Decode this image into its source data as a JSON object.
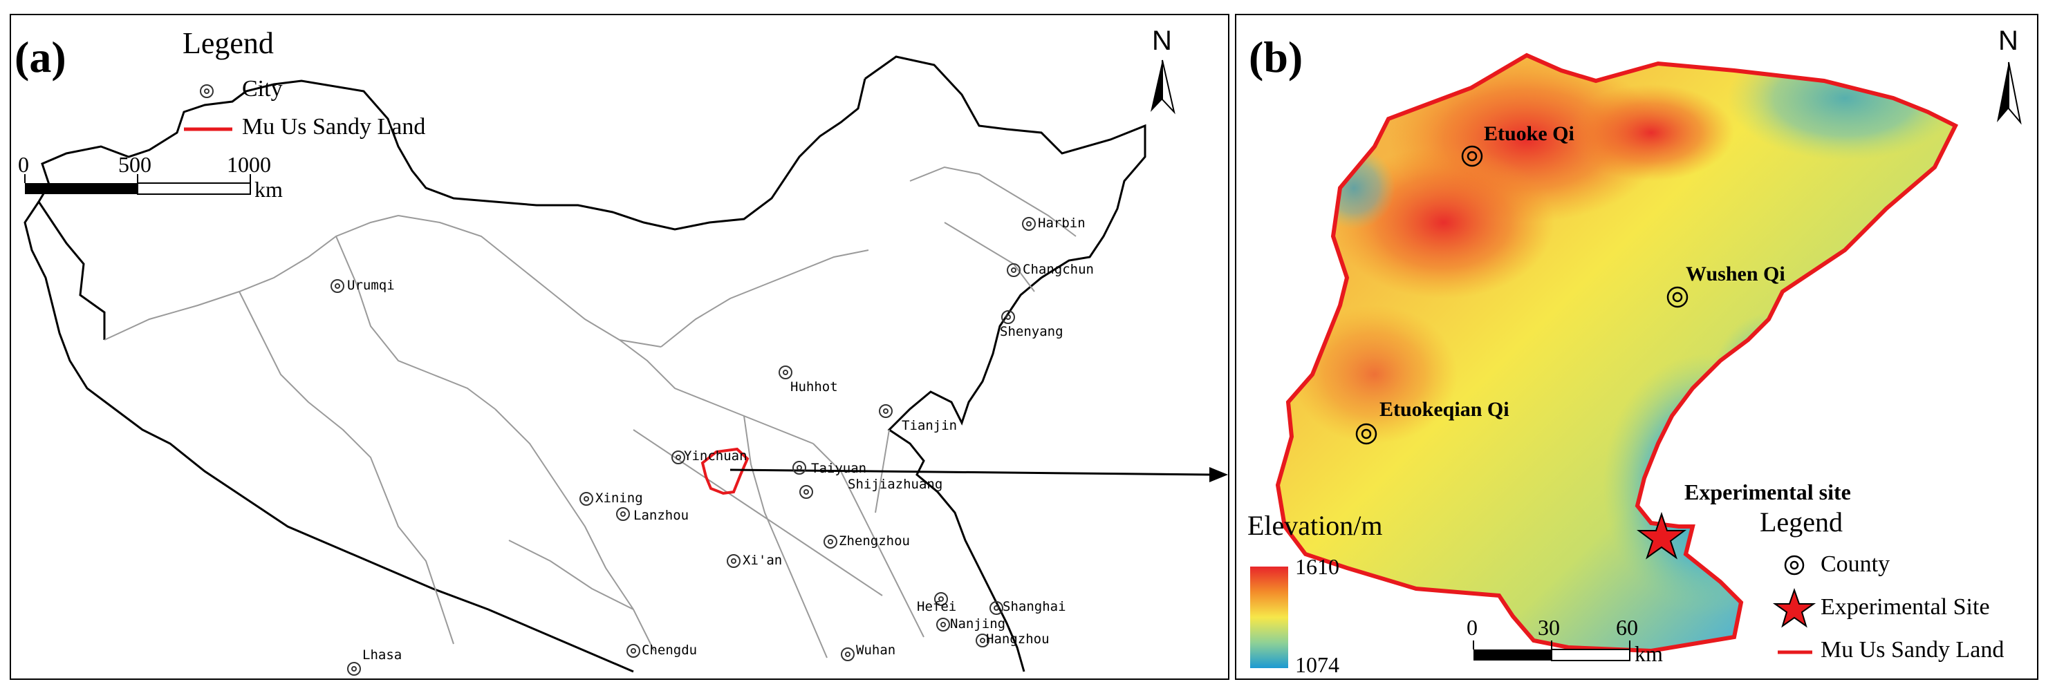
{
  "panel_a": {
    "label": "(a)",
    "legend": {
      "title": "Legend",
      "items": [
        {
          "label": "City",
          "symbol": "double-circle"
        },
        {
          "label": "Mu Us Sandy Land",
          "symbol": "red-line"
        }
      ]
    },
    "scale_bar": {
      "ticks": [
        "0",
        "500",
        "1000"
      ],
      "unit": "km"
    },
    "north": "N",
    "cities": [
      "Harbin",
      "Changchun",
      "Shenyang",
      "Urumqi",
      "Huhhot",
      "Tianjin",
      "Yinchuan",
      "Taiyuan",
      "Shijiazhuang",
      "Xining",
      "Lanzhou",
      "Xi'an",
      "Zhengzhou",
      "Hefei",
      "Nanjing",
      "Shanghai",
      "Hangzhou",
      "Wuhan",
      "Chengdu",
      "Lhasa"
    ]
  },
  "panel_b": {
    "label": "(b)",
    "north": "N",
    "counties": [
      "Etuoke Qi",
      "Wushen Qi",
      "Etuokeqian Qi"
    ],
    "site_label": "Experimental site",
    "elevation": {
      "title": "Elevation/m",
      "max": "1610",
      "min": "1074"
    },
    "legend": {
      "title": "Legend",
      "items": [
        {
          "label": "County",
          "symbol": "double-circle"
        },
        {
          "label": "Experimental Site",
          "symbol": "red-star"
        },
        {
          "label": "Mu Us Sandy Land",
          "symbol": "red-line"
        }
      ]
    },
    "scale_bar": {
      "ticks": [
        "0",
        "30",
        "60"
      ],
      "unit": "km"
    }
  },
  "colors": {
    "boundary": "#e8191d",
    "province": "#9a9a9a",
    "elev_high": "#e8262a",
    "elev_mid": "#f6e74a",
    "elev_low": "#1c9ad2"
  }
}
